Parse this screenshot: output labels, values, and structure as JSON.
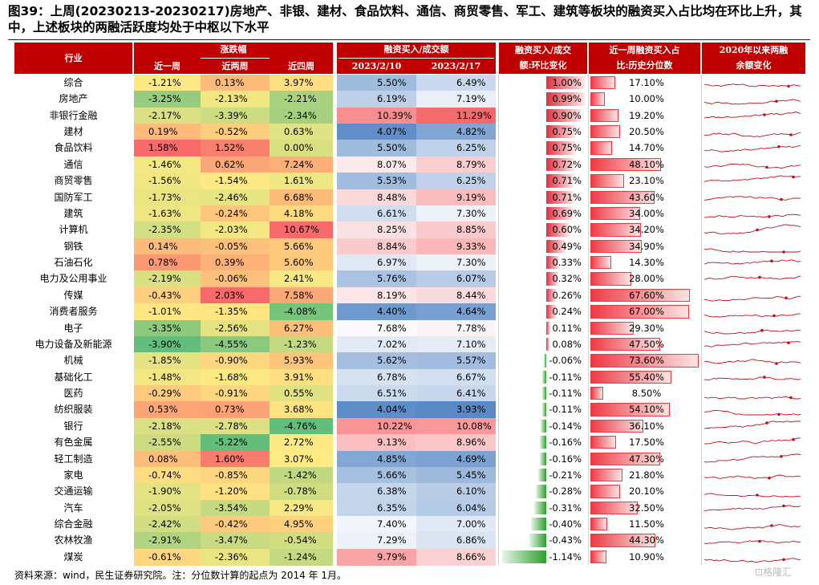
{
  "title": "图39：上周(20230213-20230217)房地产、非银、建材、食品饮料、通信、商贸零售、军工、建筑等板块的融资买入占比均在环比上升，其中，上述板块的两融活跃度均处于中枢以下水平",
  "footer": "资料来源：wind，民生证券研究院。注：分位数计算的起点为 2014 年 1月。",
  "logo_text": "格隆汇",
  "colors": {
    "header": "#c00000",
    "bar_pos": "#e03040",
    "bar_neg": "#2ca02c",
    "pct_bar": "#ee3a45",
    "spark": "#c01020"
  },
  "chart_data": {
    "type": "table",
    "headers": {
      "industry": "行业",
      "change_group": "涨跌幅",
      "week1": "近一周",
      "week2": "近两周",
      "week4": "近四周",
      "ratio_group": "融资买入/成交额",
      "d1": "2023/2/10",
      "d2": "2023/2/17",
      "wow_line1": "融资买入/成交",
      "wow_line2": "额:环比变化",
      "pct_line1": "近一周融资买入占",
      "pct_line2": "比:历史分位数",
      "trend_line1": "2020年以来两融",
      "trend_line2": "余额变化"
    },
    "rows": [
      {
        "name": "综合",
        "w1": "-1.21%",
        "w2": "0.13%",
        "w4": "3.97%",
        "r1": "5.50%",
        "r2": "6.49%",
        "wow": "1.00%",
        "wow_v": 1.0,
        "pct": "17.10%",
        "pct_v": 17.1
      },
      {
        "name": "房地产",
        "w1": "-3.25%",
        "w2": "-2.13%",
        "w4": "-2.21%",
        "r1": "6.19%",
        "r2": "7.19%",
        "wow": "0.99%",
        "wow_v": 0.99,
        "pct": "10.00%",
        "pct_v": 10.0
      },
      {
        "name": "非银行金融",
        "w1": "-2.17%",
        "w2": "-3.39%",
        "w4": "-2.34%",
        "r1": "10.39%",
        "r2": "11.29%",
        "wow": "0.90%",
        "wow_v": 0.9,
        "pct": "19.20%",
        "pct_v": 19.2
      },
      {
        "name": "建材",
        "w1": "0.19%",
        "w2": "-0.52%",
        "w4": "0.63%",
        "r1": "4.07%",
        "r2": "4.82%",
        "wow": "0.75%",
        "wow_v": 0.75,
        "pct": "20.50%",
        "pct_v": 20.5
      },
      {
        "name": "食品饮料",
        "w1": "1.58%",
        "w2": "1.52%",
        "w4": "0.00%",
        "r1": "5.50%",
        "r2": "6.25%",
        "wow": "0.75%",
        "wow_v": 0.75,
        "pct": "14.70%",
        "pct_v": 14.7
      },
      {
        "name": "通信",
        "w1": "-1.46%",
        "w2": "0.62%",
        "w4": "7.24%",
        "r1": "8.07%",
        "r2": "8.79%",
        "wow": "0.72%",
        "wow_v": 0.72,
        "pct": "48.10%",
        "pct_v": 48.1
      },
      {
        "name": "商贸零售",
        "w1": "-1.56%",
        "w2": "-1.54%",
        "w4": "1.61%",
        "r1": "5.53%",
        "r2": "6.25%",
        "wow": "0.71%",
        "wow_v": 0.71,
        "pct": "23.10%",
        "pct_v": 23.1
      },
      {
        "name": "国防军工",
        "w1": "-1.73%",
        "w2": "-2.46%",
        "w4": "6.68%",
        "r1": "8.48%",
        "r2": "9.19%",
        "wow": "0.71%",
        "wow_v": 0.71,
        "pct": "43.60%",
        "pct_v": 43.6
      },
      {
        "name": "建筑",
        "w1": "-1.63%",
        "w2": "-0.24%",
        "w4": "4.18%",
        "r1": "6.61%",
        "r2": "7.30%",
        "wow": "0.69%",
        "wow_v": 0.69,
        "pct": "34.00%",
        "pct_v": 34.0
      },
      {
        "name": "计算机",
        "w1": "-2.35%",
        "w2": "-2.03%",
        "w4": "10.67%",
        "r1": "8.25%",
        "r2": "8.85%",
        "wow": "0.60%",
        "wow_v": 0.6,
        "pct": "34.20%",
        "pct_v": 34.2
      },
      {
        "name": "钢铁",
        "w1": "0.14%",
        "w2": "-0.05%",
        "w4": "5.66%",
        "r1": "8.84%",
        "r2": "9.33%",
        "wow": "0.49%",
        "wow_v": 0.49,
        "pct": "34.90%",
        "pct_v": 34.9
      },
      {
        "name": "石油石化",
        "w1": "0.78%",
        "w2": "0.39%",
        "w4": "5.60%",
        "r1": "6.97%",
        "r2": "7.30%",
        "wow": "0.33%",
        "wow_v": 0.33,
        "pct": "14.30%",
        "pct_v": 14.3
      },
      {
        "name": "电力及公用事业",
        "w1": "-2.19%",
        "w2": "-0.06%",
        "w4": "2.41%",
        "r1": "5.76%",
        "r2": "6.07%",
        "wow": "0.32%",
        "wow_v": 0.32,
        "pct": "28.00%",
        "pct_v": 28.0
      },
      {
        "name": "传媒",
        "w1": "-0.43%",
        "w2": "2.03%",
        "w4": "7.58%",
        "r1": "8.19%",
        "r2": "8.44%",
        "wow": "0.26%",
        "wow_v": 0.26,
        "pct": "67.60%",
        "pct_v": 67.6
      },
      {
        "name": "消费者服务",
        "w1": "-1.01%",
        "w2": "-1.35%",
        "w4": "-4.08%",
        "r1": "4.40%",
        "r2": "4.64%",
        "wow": "0.24%",
        "wow_v": 0.24,
        "pct": "67.00%",
        "pct_v": 67.0
      },
      {
        "name": "电子",
        "w1": "-3.35%",
        "w2": "-2.56%",
        "w4": "6.27%",
        "r1": "7.68%",
        "r2": "7.78%",
        "wow": "0.11%",
        "wow_v": 0.11,
        "pct": "29.30%",
        "pct_v": 29.3
      },
      {
        "name": "电力设备及新能源",
        "w1": "-3.90%",
        "w2": "-4.55%",
        "w4": "-1.23%",
        "r1": "7.02%",
        "r2": "7.10%",
        "wow": "0.08%",
        "wow_v": 0.08,
        "pct": "47.50%",
        "pct_v": 47.5
      },
      {
        "name": "机械",
        "w1": "-1.85%",
        "w2": "-0.90%",
        "w4": "5.93%",
        "r1": "5.62%",
        "r2": "5.57%",
        "wow": "-0.06%",
        "wow_v": -0.06,
        "pct": "73.60%",
        "pct_v": 73.6
      },
      {
        "name": "基础化工",
        "w1": "-1.48%",
        "w2": "-1.68%",
        "w4": "3.91%",
        "r1": "6.78%",
        "r2": "6.67%",
        "wow": "-0.11%",
        "wow_v": -0.11,
        "pct": "55.40%",
        "pct_v": 55.4
      },
      {
        "name": "医药",
        "w1": "-0.29%",
        "w2": "-0.91%",
        "w4": "0.55%",
        "r1": "6.51%",
        "r2": "6.41%",
        "wow": "-0.11%",
        "wow_v": -0.11,
        "pct": "8.50%",
        "pct_v": 8.5
      },
      {
        "name": "纺织服装",
        "w1": "0.53%",
        "w2": "0.73%",
        "w4": "3.68%",
        "r1": "4.04%",
        "r2": "3.93%",
        "wow": "-0.11%",
        "wow_v": -0.11,
        "pct": "54.10%",
        "pct_v": 54.1
      },
      {
        "name": "银行",
        "w1": "-2.18%",
        "w2": "-2.78%",
        "w4": "-4.76%",
        "r1": "10.22%",
        "r2": "10.08%",
        "wow": "-0.14%",
        "wow_v": -0.14,
        "pct": "36.10%",
        "pct_v": 36.1
      },
      {
        "name": "有色金属",
        "w1": "-2.55%",
        "w2": "-5.22%",
        "w4": "2.72%",
        "r1": "9.13%",
        "r2": "8.96%",
        "wow": "-0.16%",
        "wow_v": -0.16,
        "pct": "17.50%",
        "pct_v": 17.5
      },
      {
        "name": "轻工制造",
        "w1": "0.08%",
        "w2": "1.60%",
        "w4": "3.07%",
        "r1": "4.85%",
        "r2": "4.69%",
        "wow": "-0.16%",
        "wow_v": -0.16,
        "pct": "47.30%",
        "pct_v": 47.3
      },
      {
        "name": "家电",
        "w1": "-0.74%",
        "w2": "-0.85%",
        "w4": "-1.42%",
        "r1": "5.66%",
        "r2": "5.45%",
        "wow": "-0.21%",
        "wow_v": -0.21,
        "pct": "21.80%",
        "pct_v": 21.8
      },
      {
        "name": "交通运输",
        "w1": "-1.90%",
        "w2": "-1.20%",
        "w4": "-0.78%",
        "r1": "6.38%",
        "r2": "6.10%",
        "wow": "-0.28%",
        "wow_v": -0.28,
        "pct": "20.10%",
        "pct_v": 20.1
      },
      {
        "name": "汽车",
        "w1": "-2.05%",
        "w2": "-3.54%",
        "w4": "2.29%",
        "r1": "6.35%",
        "r2": "6.04%",
        "wow": "-0.31%",
        "wow_v": -0.31,
        "pct": "32.50%",
        "pct_v": 32.5
      },
      {
        "name": "综合金融",
        "w1": "-2.42%",
        "w2": "-0.42%",
        "w4": "4.95%",
        "r1": "7.40%",
        "r2": "7.00%",
        "wow": "-0.40%",
        "wow_v": -0.4,
        "pct": "11.50%",
        "pct_v": 11.5
      },
      {
        "name": "农林牧渔",
        "w1": "-2.91%",
        "w2": "-3.47%",
        "w4": "-0.54%",
        "r1": "7.29%",
        "r2": "6.86%",
        "wow": "-0.43%",
        "wow_v": -0.43,
        "pct": "44.30%",
        "pct_v": 44.3
      },
      {
        "name": "煤炭",
        "w1": "-0.61%",
        "w2": "-2.36%",
        "w4": "-1.24%",
        "r1": "9.79%",
        "r2": "8.66%",
        "wow": "-1.14%",
        "wow_v": -1.14,
        "pct": "10.90%",
        "pct_v": 10.9
      }
    ]
  }
}
